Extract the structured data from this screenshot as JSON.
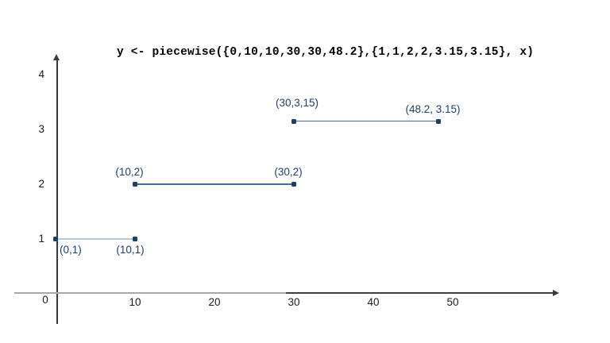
{
  "chart_data": {
    "type": "line",
    "subtype": "piecewise-constant-step",
    "title": "y <- piecewise({0,10,10,30,30,48.2},{1,1,2,2,3.15,3.15}, x)",
    "x_breakpoints": [
      0,
      10,
      10,
      30,
      30,
      48.2
    ],
    "y_values": [
      1,
      1,
      2,
      2,
      3.15,
      3.15
    ],
    "x_ticks": [
      0,
      10,
      20,
      30,
      40,
      50
    ],
    "y_ticks": [
      1,
      2,
      3,
      4
    ],
    "x_range": [
      0,
      63
    ],
    "y_range": [
      0,
      4.3
    ],
    "grid": "off",
    "legend": "none",
    "segments": [
      {
        "points": [
          [
            0,
            1
          ],
          [
            10,
            1
          ]
        ],
        "line_style": "light",
        "labels": [
          {
            "text": "(0,1)",
            "placement": "below-right"
          },
          {
            "text": "(10,1)",
            "placement": "below"
          }
        ]
      },
      {
        "points": [
          [
            10,
            2
          ],
          [
            30,
            2
          ]
        ],
        "line_style": "normal",
        "labels": [
          {
            "text": "(10,2)",
            "placement": "above"
          },
          {
            "text": "(30,2)",
            "placement": "above"
          }
        ]
      },
      {
        "points": [
          [
            30,
            3.15
          ],
          [
            48.2,
            3.15
          ]
        ],
        "line_style": "normal",
        "labels": [
          {
            "text": "(30,3,15)",
            "placement": "above-high"
          },
          {
            "text": "(48.2, 3.15)",
            "placement": "above"
          }
        ]
      }
    ],
    "colors": {
      "segment_line": "#41719c",
      "segment_line_light": "#b6c8d9",
      "marker": "#1f3f63",
      "point_label": "#1f4067",
      "axis_line": "#3a3a3a",
      "axis_line_gray": "#a9a9a9",
      "tick_label": "#1a1a1a",
      "background": "#ffffff"
    }
  }
}
